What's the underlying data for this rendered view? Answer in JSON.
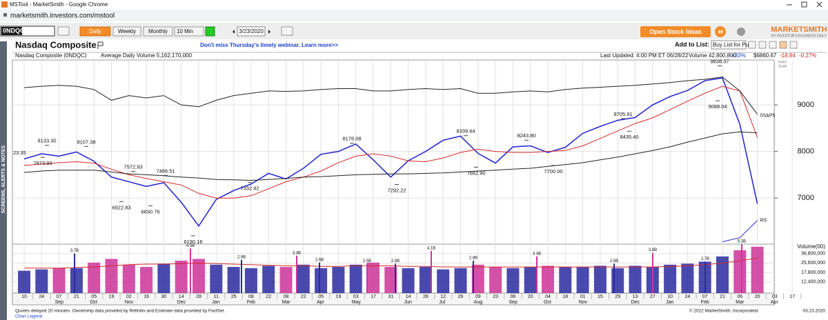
{
  "browser": {
    "title": "MSTool - MarketSmith - Google Chrome",
    "url": "marketsmith.investors.com/mstool"
  },
  "toolbar": {
    "symbol": "0NDQC",
    "periods": [
      "Daily",
      "Weekly",
      "Monthly",
      "10 Min"
    ],
    "date": "3/23/2020",
    "ideas": "Open Stock Ideas",
    "badge": "49",
    "logo": "MARKETSMITH",
    "logo_sub": "BY INVESTOR'S BUSINESS DAILY"
  },
  "header": {
    "title": "Nasdaq Composite",
    "promo": "Don't miss Thursday's timely webinar. Learn more>>",
    "add_to_list": "Add to List:",
    "list": "Buy List for Pu..."
  },
  "info": {
    "name": "Nasdaq Composite  (0NDQC)",
    "avg_volume": "Average Daily Volume 5,162,170,000",
    "updated": "Last Updated: 4:00 PM ET 06/28/22",
    "volume": "Volume 42,800,800",
    "volume_change": "+33%",
    "price": "$6860.67",
    "change": "-18.84",
    "change_pct": "-0.27%",
    "scale": [
      "Index",
      "Scale"
    ]
  },
  "side_tab": "SCREENS, ALERTS & NOTES",
  "footer": {
    "note": "Quotes delayed 20 minutes. Ownership data provided by Refinitiv and Estimate data provided by FactSet.",
    "legend": "Chart Legend",
    "copyright": "© 2022 MarketSmith, Incorporated.",
    "date": "03.23.2020"
  },
  "chart_data": {
    "type": "line",
    "categories": [
      "10",
      "24",
      "07",
      "21",
      "05",
      "19",
      "02",
      "16",
      "30",
      "14",
      "28",
      "11",
      "25",
      "08",
      "22",
      "08",
      "22",
      "05",
      "19",
      "03",
      "17",
      "31",
      "14",
      "28",
      "12",
      "26",
      "09",
      "23",
      "06",
      "20",
      "04",
      "18",
      "01",
      "15",
      "29",
      "13",
      "27",
      "10",
      "24",
      "07",
      "21",
      "06",
      "20",
      "03",
      "17"
    ],
    "months": [
      "Sep",
      "Oct",
      "Nov",
      "Dec",
      "Jan",
      "Feb",
      "Mar",
      "Apr",
      "May",
      "Jun",
      "Jul",
      "Aug",
      "Sep",
      "Oct",
      "Nov",
      "Dec",
      "Jan",
      "Feb",
      "Mar",
      "Apr"
    ],
    "ylim": [
      6040,
      9920
    ],
    "yticks": [
      7000,
      8000,
      9000
    ],
    "grid": true,
    "series": [
      {
        "color": "#2a2ad0",
        "values": [
          7840,
          7950,
          7900,
          7990,
          7790,
          7450,
          7350,
          7250,
          7330,
          6910,
          6400,
          6970,
          7160,
          7300,
          7530,
          7410,
          7640,
          7940,
          8000,
          8160,
          7820,
          7450,
          7800,
          8000,
          8240,
          8330,
          7960,
          7750,
          8100,
          8120,
          7980,
          8090,
          8390,
          8540,
          8670,
          8730,
          9000,
          9180,
          9310,
          9520,
          9580,
          8580,
          6880,
          null,
          null
        ]
      },
      {
        "color": "#d62728",
        "values": [
          7700,
          7730,
          7760,
          7780,
          7750,
          7620,
          7500,
          7420,
          7350,
          7280,
          7100,
          7000,
          7000,
          7050,
          7200,
          7350,
          7450,
          7580,
          7760,
          7900,
          7950,
          7900,
          7800,
          7780,
          7860,
          7980,
          8050,
          8000,
          7980,
          7980,
          8000,
          8020,
          8120,
          8280,
          8440,
          8600,
          8720,
          8900,
          9080,
          9250,
          9400,
          9300,
          8300,
          null,
          null
        ]
      },
      {
        "color": "#222222",
        "values": [
          7550,
          7580,
          7600,
          7600,
          7600,
          7560,
          7520,
          7500,
          7480,
          7450,
          7430,
          7400,
          7390,
          7380,
          7400,
          7420,
          7450,
          7460,
          7480,
          7500,
          7510,
          7520,
          7520,
          7530,
          7540,
          7560,
          7580,
          7600,
          7620,
          7640,
          7680,
          7720,
          7760,
          7820,
          7880,
          7950,
          8020,
          8100,
          8200,
          8290,
          8380,
          8420,
          8400,
          null,
          null
        ]
      },
      {
        "color": "#222222",
        "values": [
          9370,
          9400,
          9420,
          9400,
          9330,
          9100,
          9200,
          9150,
          9200,
          9000,
          8960,
          9100,
          9200,
          9250,
          9300,
          9290,
          9300,
          9330,
          9350,
          9350,
          9300,
          9300,
          9330,
          9350,
          9330,
          9350,
          9250,
          9250,
          9280,
          9300,
          9280,
          9330,
          9360,
          9380,
          9400,
          9420,
          9450,
          9480,
          9520,
          9550,
          9600,
          9300,
          8800,
          null,
          null
        ]
      },
      {
        "color": "#2a2ad0",
        "values": [
          null,
          null,
          null,
          null,
          null,
          null,
          null,
          null,
          null,
          null,
          null,
          null,
          null,
          null,
          null,
          null,
          null,
          null,
          null,
          null,
          null,
          null,
          null,
          null,
          null,
          null,
          null,
          null,
          null,
          null,
          null,
          null,
          null,
          null,
          null,
          null,
          null,
          null,
          null,
          null,
          6060,
          6150,
          6520,
          null,
          null
        ]
      }
    ],
    "line_labels": {
      "sp": "0S&P5",
      "rs": "RS"
    },
    "edge_label": "23.35",
    "peaks": {
      "values": [
        8133.3,
        7873.93,
        8107.38,
        7572.93,
        7486.51,
        6922.83,
        6830.76,
        6190.16,
        7332.92,
        8176.08,
        7292.22,
        8339.64,
        7662.9,
        8243.8,
        7700,
        8705.91,
        8435.4,
        9088.04,
        9838.37
      ],
      "value_labels": [
        "8133.30",
        "7873.93",
        "8107.38",
        "7572.93",
        "7486.51",
        "6922.83",
        "6830.76",
        "6190.16",
        "7332.92",
        "8176.08",
        "7292.22",
        "8339.64",
        "7662.90",
        "8243.80",
        "7700.00",
        "8705.91",
        "8435.40",
        "9088.04",
        "9838.37"
      ]
    },
    "volume": {
      "label": "Volume(00)",
      "log": true,
      "up_color": "#2a2aa0",
      "down_color": "#cc3399",
      "ylim": [
        8000000,
        56000000
      ],
      "yticks": [
        {
          "value": 36800000,
          "label": "36,800,000"
        },
        {
          "value": 25600000,
          "label": "25,600,000"
        },
        {
          "value": 17800000,
          "label": "17,800,000"
        },
        {
          "value": 12400000,
          "label": "12,400,000"
        }
      ],
      "values": [
        19000000,
        20000000,
        21000000,
        21000000,
        26000000,
        30000000,
        24000000,
        22000000,
        25000000,
        28000000,
        30000000,
        24000000,
        22000000,
        21000000,
        23000000,
        22000000,
        24000000,
        21000000,
        22000000,
        24000000,
        26000000,
        22000000,
        21000000,
        22000000,
        20000000,
        21000000,
        24000000,
        22000000,
        21000000,
        22000000,
        23000000,
        22000000,
        22000000,
        23000000,
        21000000,
        23000000,
        22000000,
        24000000,
        25000000,
        27000000,
        33000000,
        42000000,
        48000000,
        null,
        null
      ],
      "average": {
        "color": "#d62728",
        "values": [
          21000000,
          21000000,
          21000000,
          21500000,
          22000000,
          23000000,
          24000000,
          24500000,
          24500000,
          25000000,
          25500000,
          25000000,
          24500000,
          24000000,
          23500000,
          23000000,
          23000000,
          22500000,
          22500000,
          23000000,
          23000000,
          23000000,
          22500000,
          22500000,
          22000000,
          22000000,
          22000000,
          22000000,
          22000000,
          22000000,
          22000000,
          22000000,
          22000000,
          22000000,
          22000000,
          22000000,
          22000000,
          22500000,
          23000000,
          24000000,
          25500000,
          28000000,
          31000000,
          null,
          null
        ]
      },
      "peaks": {
        "values": [
          37000000,
          45000000,
          29000000,
          34000000,
          26000000,
          25000000,
          25000000,
          41000000,
          28000000,
          33000000,
          25000000,
          38000000,
          27000000,
          53000000
        ],
        "value_labels": [
          "3.7B",
          "4.5B",
          "2.9B",
          "3.4B",
          "2.6B",
          "2.5B",
          "2.5B",
          "4.1B",
          "2.8B",
          "3.3B",
          "2.5B",
          "3.8B",
          "2.7B",
          "5.3B"
        ]
      }
    }
  }
}
